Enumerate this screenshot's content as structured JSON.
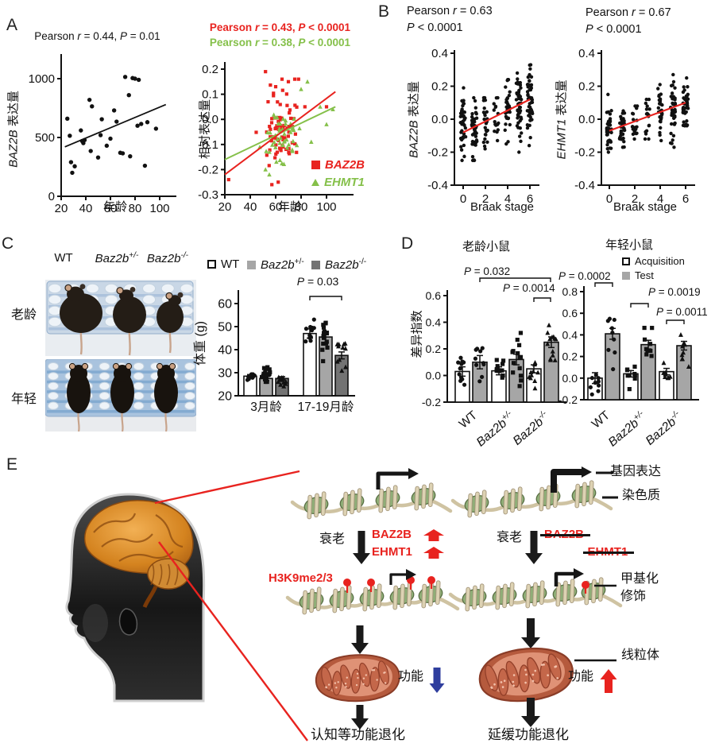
{
  "colors": {
    "red": "#e8231f",
    "green": "#85c04a",
    "blue": "#2f3e9e",
    "black": "#111111",
    "bar_light": "#a6a6a6",
    "bar_dark": "#737373",
    "rack_light": "#c9d7e6",
    "rack_blue": "#a9c3de"
  },
  "panels": {
    "a": {
      "label": "A"
    },
    "b": {
      "label": "B"
    },
    "c": {
      "label": "C",
      "col_headers": [
        "WT",
        "*Baz2b*^+/-^",
        "*Baz2b*^-/-^"
      ],
      "row_labels": [
        "老龄",
        "年轻"
      ],
      "legend": [
        {
          "label": "WT",
          "fill": "#ffffff"
        },
        {
          "label": "*Baz2b*^+/-^",
          "fill": "#a6a6a6"
        },
        {
          "label": "*Baz2b*^-/-^",
          "fill": "#737373"
        }
      ]
    },
    "d": {
      "label": "D",
      "title_left": "老龄小鼠",
      "title_right": "年轻小鼠",
      "legend": [
        {
          "label": "Acquisition",
          "fill": "#ffffff"
        },
        {
          "label": "Test",
          "fill": "#a6a6a6"
        }
      ]
    },
    "e": {
      "label": "E",
      "texts": {
        "gene_expression": "基因表达",
        "chromatin": "染色质",
        "aging": "衰老",
        "baz2b": "BAZ2B",
        "ehmt1": "EHMT1",
        "h3k9": "H3K9me2/3",
        "methyl1": "甲基化",
        "methyl2": "修饰",
        "mito": "线粒体",
        "func": "功能",
        "decline_left": "认知等功能退化",
        "decline_right": "延缓功能退化"
      }
    }
  },
  "chart_data": [
    {
      "id": "a1",
      "type": "scatter",
      "title": "Pearson *r* = 0.44, *P* = 0.01",
      "ylabel": "*BAZ2B* 表达量",
      "xlabel": "年龄",
      "xticks": [
        20,
        40,
        60,
        80,
        100
      ],
      "yticks": [
        0,
        500,
        1000
      ],
      "xlim": [
        14,
        110
      ],
      "ylim": [
        0,
        1180
      ],
      "points": [
        [
          25,
          660
        ],
        [
          27,
          515
        ],
        [
          28,
          290
        ],
        [
          29,
          200
        ],
        [
          31,
          255
        ],
        [
          36,
          560
        ],
        [
          37,
          470
        ],
        [
          38,
          452
        ],
        [
          39,
          478
        ],
        [
          43,
          820
        ],
        [
          44,
          385
        ],
        [
          45,
          765
        ],
        [
          50,
          330
        ],
        [
          52,
          520
        ],
        [
          53,
          655
        ],
        [
          57,
          430
        ],
        [
          60,
          490
        ],
        [
          63,
          730
        ],
        [
          65,
          635
        ],
        [
          68,
          370
        ],
        [
          70,
          365
        ],
        [
          72,
          1015
        ],
        [
          75,
          860
        ],
        [
          76,
          340
        ],
        [
          78,
          1005
        ],
        [
          80,
          1000
        ],
        [
          82,
          600
        ],
        [
          83,
          990
        ],
        [
          85,
          615
        ],
        [
          88,
          260
        ],
        [
          90,
          630
        ],
        [
          97,
          575
        ]
      ],
      "trend": {
        "x1": 23,
        "y1": 420,
        "x2": 105,
        "y2": 780,
        "color": "#111111"
      }
    },
    {
      "id": "a2",
      "type": "scatter-multi",
      "titles": [
        {
          "text": "Pearson *r* = 0.43, *P* < 0.0001",
          "color": "#e8231f"
        },
        {
          "text": "Pearson *r* = 0.38, *P* < 0.0001",
          "color": "#85c04a"
        }
      ],
      "ylabel": "相对表达量",
      "xlabel": "年龄",
      "xticks": [
        20,
        40,
        60,
        80,
        100
      ],
      "yticks": [
        "0.2",
        "0.1",
        "0.0",
        "-0.1",
        "-0.2",
        "-0.3"
      ],
      "series": [
        {
          "name": "*BAZ2B*",
          "marker": "square",
          "color": "#e8231f",
          "cluster": {
            "cx": 63,
            "cy": -0.055,
            "sx": 7.5,
            "sy": 0.085,
            "n": 72
          },
          "extra": [
            [
              23,
              -0.24
            ],
            [
              52,
              0.19
            ],
            [
              57,
              -0.26
            ],
            [
              60,
              0.13
            ],
            [
              62,
              -0.25
            ],
            [
              65,
              0.16
            ],
            [
              70,
              0.15
            ],
            [
              75,
              0.16
            ],
            [
              78,
              0.16
            ],
            [
              83,
              0.05
            ],
            [
              100,
              0.05
            ]
          ],
          "trend": {
            "x1": 20,
            "y1": -0.22,
            "x2": 107,
            "y2": 0.11
          }
        },
        {
          "name": "*EHMT1*",
          "marker": "triangle",
          "color": "#85c04a",
          "cluster": {
            "cx": 64,
            "cy": -0.07,
            "sx": 8,
            "sy": 0.055,
            "n": 48
          },
          "extra": [
            [
              52,
              -0.2
            ],
            [
              55,
              -0.22
            ],
            [
              80,
              0.12
            ],
            [
              85,
              0.15
            ],
            [
              88,
              -0.09
            ],
            [
              95,
              0.05
            ],
            [
              100,
              -0.02
            ],
            [
              105,
              0.04
            ]
          ],
          "trend": {
            "x1": 20,
            "y1": -0.16,
            "x2": 107,
            "y2": 0.05
          }
        }
      ]
    },
    {
      "id": "b1",
      "type": "scatter-columns",
      "title_line1": "Pearson *r* = 0.63",
      "title_line2": "*P* < 0.0001",
      "ylabel": "*BAZ2B* 表达量",
      "xlabel": "Braak stage",
      "xticks": [
        0,
        2,
        4,
        6
      ],
      "yticks": [
        "0.4",
        "0.2",
        "0.0",
        "-0.2",
        "-0.4"
      ],
      "columns": [
        {
          "x": 0,
          "n": 38,
          "mean": -0.04,
          "sd": 0.1,
          "min": -0.25,
          "max": 0.19
        },
        {
          "x": 1,
          "n": 42,
          "mean": -0.05,
          "sd": 0.1,
          "min": -0.25,
          "max": 0.13
        },
        {
          "x": 2,
          "n": 22,
          "mean": -0.02,
          "sd": 0.09,
          "min": -0.18,
          "max": 0.13
        },
        {
          "x": 3,
          "n": 14,
          "mean": 0.0,
          "sd": 0.08,
          "min": -0.13,
          "max": 0.13
        },
        {
          "x": 4,
          "n": 32,
          "mean": 0.07,
          "sd": 0.1,
          "min": -0.15,
          "max": 0.24
        },
        {
          "x": 5,
          "n": 46,
          "mean": 0.06,
          "sd": 0.11,
          "min": -0.2,
          "max": 0.28
        },
        {
          "x": 6,
          "n": 50,
          "mean": 0.1,
          "sd": 0.11,
          "min": -0.16,
          "max": 0.33
        }
      ],
      "trend": {
        "x1": 0,
        "y1": -0.08,
        "x2": 6,
        "y2": 0.12,
        "color": "#e8231f"
      }
    },
    {
      "id": "b2",
      "type": "scatter-columns",
      "title_line1": "Pearson *r* = 0.67",
      "title_line2": "*P* < 0.0001",
      "ylabel": "*EHMT1* 表达量",
      "xlabel": "Braak stage",
      "xticks": [
        0,
        2,
        4,
        6
      ],
      "yticks": [
        "0.4",
        "0.2",
        "0.0",
        "-0.2",
        "-0.4"
      ],
      "columns": [
        {
          "x": 0,
          "n": 36,
          "mean": -0.05,
          "sd": 0.08,
          "min": -0.2,
          "max": 0.15
        },
        {
          "x": 1,
          "n": 32,
          "mean": -0.06,
          "sd": 0.06,
          "min": -0.17,
          "max": 0.05
        },
        {
          "x": 2,
          "n": 16,
          "mean": -0.02,
          "sd": 0.06,
          "min": -0.12,
          "max": 0.08
        },
        {
          "x": 3,
          "n": 16,
          "mean": 0.0,
          "sd": 0.07,
          "min": -0.12,
          "max": 0.12
        },
        {
          "x": 4,
          "n": 30,
          "mean": 0.04,
          "sd": 0.08,
          "min": -0.13,
          "max": 0.21
        },
        {
          "x": 5,
          "n": 42,
          "mean": 0.05,
          "sd": 0.1,
          "min": -0.17,
          "max": 0.27
        },
        {
          "x": 6,
          "n": 40,
          "mean": 0.09,
          "sd": 0.07,
          "min": -0.04,
          "max": 0.25
        }
      ],
      "trend": {
        "x1": 0,
        "y1": -0.07,
        "x2": 6,
        "y2": 0.1,
        "color": "#e8231f"
      }
    },
    {
      "id": "c",
      "type": "bar",
      "ylabel": "体重 (g)",
      "yticks": [
        20,
        30,
        40,
        50,
        60
      ],
      "ylim": [
        20,
        65
      ],
      "categories": [
        "3月龄",
        "17-19月龄"
      ],
      "series": [
        {
          "name": "WT",
          "marker": "circle",
          "fill": "#ffffff",
          "values": [
            28.5,
            47
          ],
          "err": [
            0.7,
            2
          ],
          "overlays": [
            {
              "n": 12,
              "min": 26.5,
              "max": 30
            },
            {
              "n": 11,
              "min": 39,
              "max": 58
            }
          ]
        },
        {
          "name": "Baz2b+/-",
          "marker": "square",
          "fill": "#a6a6a6",
          "values": [
            27.5,
            45.5
          ],
          "err": [
            1,
            2.5
          ],
          "overlays": [
            {
              "n": 18,
              "min": 24,
              "max": 33
            },
            {
              "n": 16,
              "min": 33,
              "max": 62
            }
          ]
        },
        {
          "name": "Baz2b-/-",
          "marker": "triangle",
          "fill": "#737373",
          "values": [
            27.5,
            37.5
          ],
          "err": [
            0.8,
            1.5
          ],
          "overlays": [
            {
              "n": 13,
              "min": 23.5,
              "max": 30
            },
            {
              "n": 11,
              "min": 30,
              "max": 47
            }
          ]
        }
      ],
      "bracket_label": "*P* = 0.03"
    },
    {
      "id": "d1",
      "type": "paired-bar",
      "title": "老龄小鼠",
      "ylabel": "差异指数",
      "yticks": [
        "-0.2",
        "0.0",
        "0.2",
        "0.4",
        "0.6"
      ],
      "ylim": [
        -0.2,
        0.65
      ],
      "categories": [
        {
          "label": "WT",
          "marker": "circle"
        },
        {
          "label": "*Baz2b*^+/-^",
          "marker": "square"
        },
        {
          "label": "*Baz2b*^-/-^",
          "marker": "triangle"
        }
      ],
      "acquisition": {
        "values": [
          0.03,
          0.035,
          0.05
        ],
        "err": [
          0.035,
          0.03,
          0.03
        ],
        "overlays": [
          {
            "n": 11,
            "min": -0.16,
            "max": 0.22
          },
          {
            "n": 13,
            "min": -0.07,
            "max": 0.17
          },
          {
            "n": 10,
            "min": -0.1,
            "max": 0.17
          }
        ]
      },
      "test": {
        "values": [
          0.1,
          0.12,
          0.25
        ],
        "err": [
          0.05,
          0.04,
          0.04
        ],
        "overlays": [
          {
            "n": 10,
            "min": -0.1,
            "max": 0.38
          },
          {
            "n": 14,
            "min": -0.13,
            "max": 0.39
          },
          {
            "n": 13,
            "min": -0.05,
            "max": 0.45
          }
        ]
      },
      "bracket_labels": [
        "*P* = 0.032",
        "*P* = 0.0014"
      ]
    },
    {
      "id": "d2",
      "type": "paired-bar",
      "title": "年轻小鼠",
      "ylabel": "差异指数",
      "yticks": [
        "-0.2",
        "0.0",
        "0.2",
        "0.4",
        "0.6",
        "0.8"
      ],
      "ylim": [
        -0.2,
        0.85
      ],
      "categories": [
        {
          "label": "WT",
          "marker": "circle"
        },
        {
          "label": "*Baz2b*^+/-^",
          "marker": "square"
        },
        {
          "label": "*Baz2b*^-/-^",
          "marker": "triangle"
        }
      ],
      "acquisition": {
        "values": [
          0.0,
          0.04,
          0.06
        ],
        "err": [
          0.05,
          0.03,
          0.03
        ],
        "overlays": [
          {
            "n": 9,
            "min": -0.22,
            "max": 0.2
          },
          {
            "n": 9,
            "min": -0.12,
            "max": 0.17
          },
          {
            "n": 8,
            "min": -0.1,
            "max": 0.17
          }
        ]
      },
      "test": {
        "values": [
          0.41,
          0.31,
          0.3
        ],
        "err": [
          0.05,
          0.04,
          0.04
        ],
        "overlays": [
          {
            "n": 9,
            "min": 0.05,
            "max": 0.78
          },
          {
            "n": 9,
            "min": 0.0,
            "max": 0.55
          },
          {
            "n": 9,
            "min": 0.05,
            "max": 0.5
          }
        ]
      },
      "bracket_labels": [
        "*P* = 0.0002",
        "*P* = 0.0019",
        "*P* = 0.0011"
      ]
    }
  ]
}
